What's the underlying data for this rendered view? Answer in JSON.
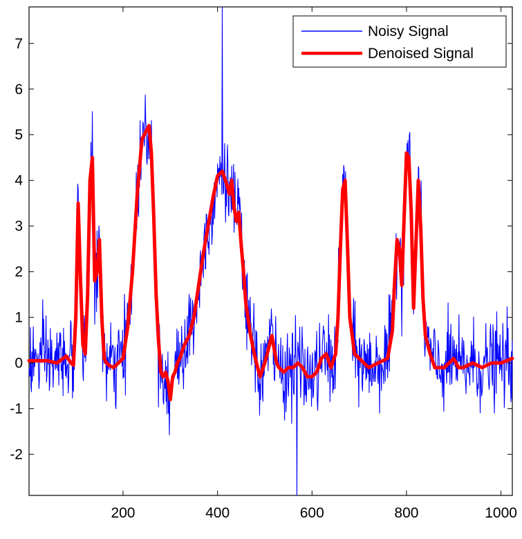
{
  "chart_data": {
    "type": "line",
    "title": "",
    "xlabel": "",
    "ylabel": "",
    "xlim": [
      1,
      1024
    ],
    "ylim": [
      -2.9,
      7.8
    ],
    "xticks": [
      200,
      400,
      600,
      800,
      1000
    ],
    "yticks": [
      -2,
      -1,
      0,
      1,
      2,
      3,
      4,
      5,
      6,
      7
    ],
    "grid": false,
    "legend_position": "top-right",
    "series": [
      {
        "name": "Noisy Signal",
        "color": "#0000ff",
        "style": "thin noisy line",
        "noise_std": 0.45,
        "spikes": [
          [
            410,
            8.1
          ],
          [
            568,
            -3.1
          ]
        ]
      },
      {
        "name": "Denoised Signal",
        "color": "#ff0000",
        "style": "thick line",
        "x": [
          1,
          40,
          60,
          80,
          90,
          95,
          100,
          105,
          110,
          115,
          120,
          125,
          130,
          135,
          140,
          145,
          150,
          155,
          160,
          165,
          170,
          180,
          190,
          200,
          210,
          220,
          230,
          240,
          250,
          255,
          260,
          265,
          270,
          275,
          280,
          285,
          290,
          295,
          300,
          305,
          310,
          315,
          320,
          330,
          340,
          350,
          360,
          370,
          380,
          390,
          400,
          410,
          420,
          425,
          430,
          435,
          440,
          445,
          450,
          455,
          460,
          470,
          480,
          490,
          500,
          510,
          515,
          520,
          525,
          530,
          540,
          550,
          560,
          570,
          580,
          590,
          600,
          610,
          620,
          630,
          640,
          650,
          655,
          660,
          665,
          670,
          675,
          680,
          690,
          700,
          720,
          740,
          760,
          770,
          775,
          780,
          785,
          790,
          795,
          800,
          805,
          810,
          815,
          820,
          825,
          830,
          835,
          840,
          850,
          860,
          870,
          880,
          890,
          900,
          910,
          920,
          940,
          960,
          980,
          1000,
          1024
        ],
        "y": [
          0.05,
          0.05,
          0.0,
          0.15,
          0.0,
          -0.05,
          1.0,
          3.5,
          1.8,
          0.4,
          0.2,
          1.5,
          4.0,
          4.5,
          1.8,
          2.0,
          2.7,
          1.0,
          0.1,
          0.0,
          -0.05,
          -0.1,
          0.0,
          0.1,
          0.8,
          2.0,
          3.7,
          4.9,
          5.1,
          5.2,
          4.6,
          3.2,
          1.5,
          0.5,
          -0.2,
          -0.3,
          -0.2,
          -0.4,
          -0.8,
          -0.3,
          -0.2,
          0.0,
          0.1,
          0.4,
          0.6,
          1.0,
          1.7,
          2.4,
          3.0,
          3.6,
          4.1,
          4.2,
          3.9,
          3.7,
          4.0,
          3.4,
          3.1,
          3.3,
          2.6,
          2.0,
          1.3,
          0.6,
          0.1,
          -0.3,
          0.0,
          0.4,
          0.6,
          0.3,
          0.0,
          -0.1,
          -0.2,
          -0.1,
          -0.1,
          0.0,
          -0.1,
          -0.3,
          -0.3,
          -0.2,
          0.1,
          0.2,
          -0.1,
          0.2,
          1.0,
          2.5,
          3.8,
          4.0,
          2.6,
          1.0,
          0.2,
          0.1,
          -0.1,
          0.0,
          0.1,
          0.7,
          1.8,
          2.7,
          2.5,
          1.7,
          3.2,
          4.6,
          4.5,
          3.3,
          1.2,
          2.6,
          4.0,
          3.0,
          1.4,
          0.6,
          0.2,
          -0.1,
          -0.1,
          -0.1,
          0.0,
          0.1,
          -0.1,
          -0.1,
          0.0,
          -0.1,
          0.0,
          0.0,
          0.1
        ]
      }
    ]
  }
}
